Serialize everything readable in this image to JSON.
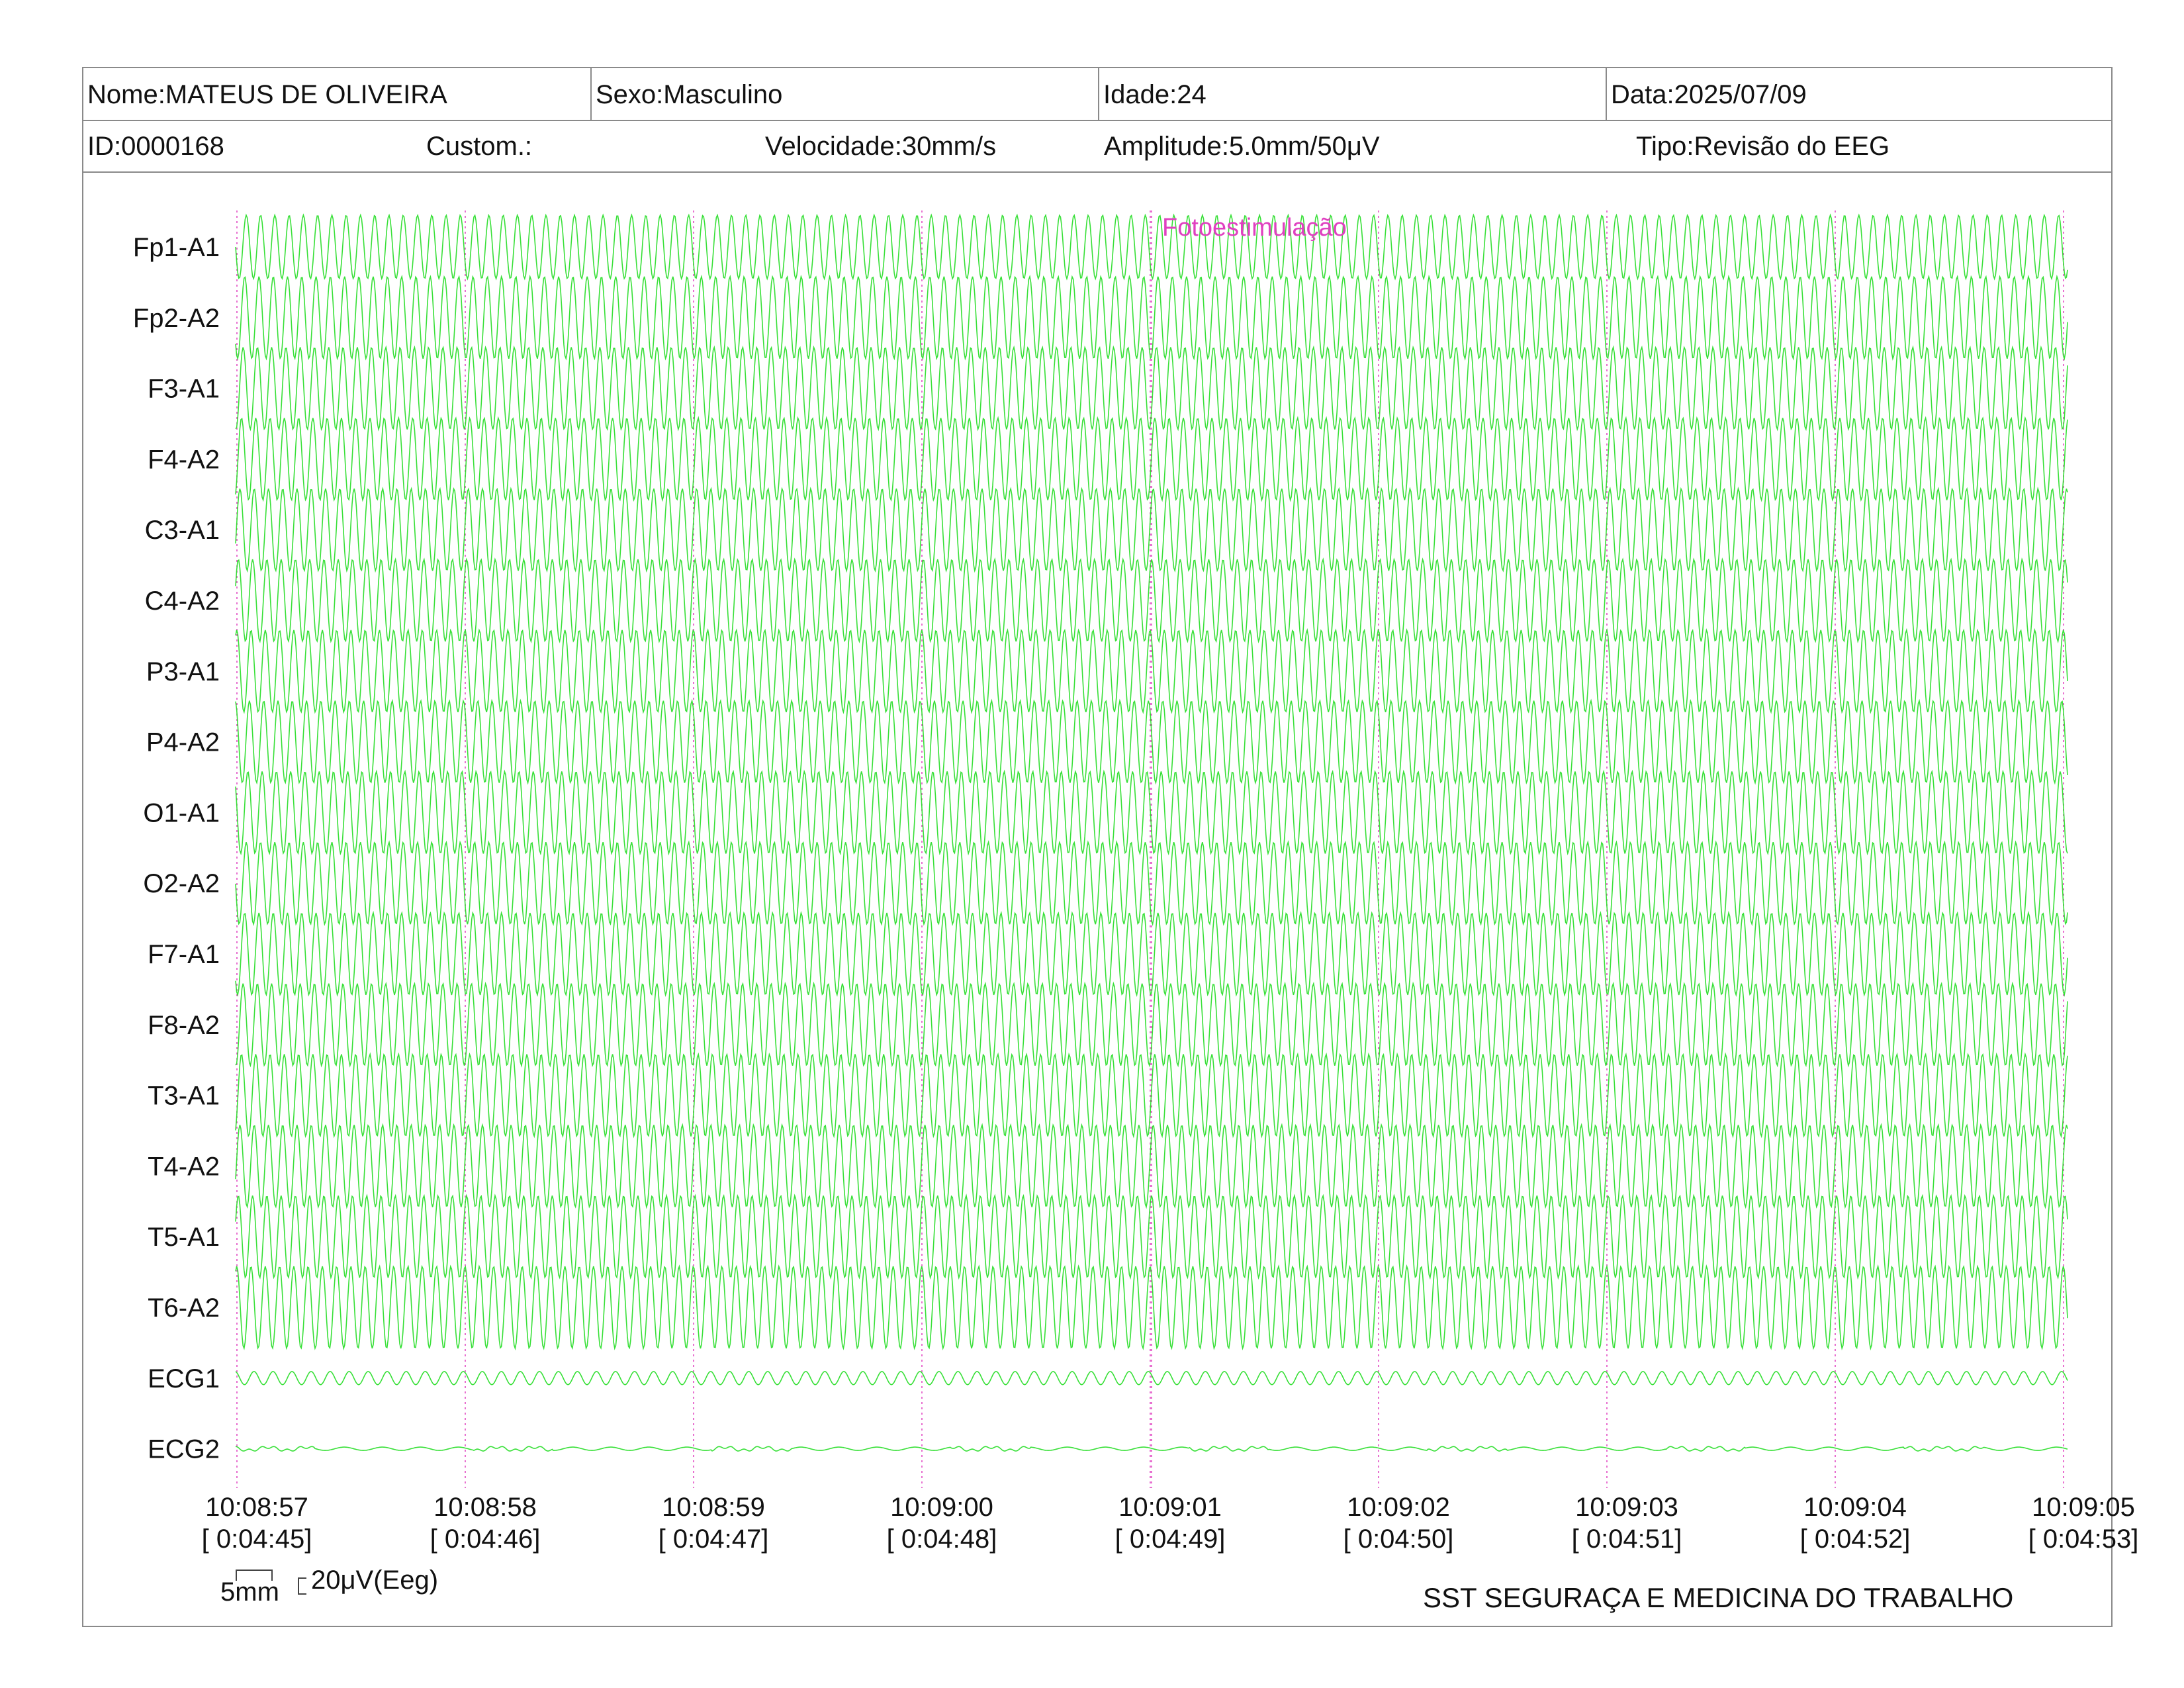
{
  "header": {
    "nome": "Nome:MATEUS DE OLIVEIRA",
    "sexo": "Sexo:Masculino",
    "idade": "Idade:24",
    "data": "Data:2025/07/09",
    "id": "ID:0000168",
    "custom": "Custom.:",
    "velocidade": "Velocidade:30mm/s",
    "amplitude": "Amplitude:5.0mm/50μV",
    "tipo": "Tipo:Revisão do EEG"
  },
  "annotation": "Fotoestimulação",
  "scale": {
    "mm_label": "5mm",
    "uv_label": "20μV(Eeg)"
  },
  "footer": {
    "company": "SST SEGURAÇA E MEDICINA DO TRABALHO"
  },
  "colors": {
    "trace": "#22dd22",
    "marker": "#e040c0",
    "border": "#8a8a8a"
  },
  "chart_data": {
    "type": "line",
    "channels": [
      "Fp1-A1",
      "Fp2-A2",
      "F3-A1",
      "F4-A2",
      "C3-A1",
      "C4-A2",
      "P3-A1",
      "P4-A2",
      "O1-A1",
      "O2-A2",
      "F7-A1",
      "F8-A2",
      "T3-A1",
      "T4-A2",
      "T5-A1",
      "T6-A2",
      "ECG1",
      "ECG2"
    ],
    "time_ticks": [
      {
        "clock": "10:08:57",
        "elapsed": "[ 0:04:45]"
      },
      {
        "clock": "10:08:58",
        "elapsed": "[ 0:04:46]"
      },
      {
        "clock": "10:08:59",
        "elapsed": "[ 0:04:47]"
      },
      {
        "clock": "10:09:00",
        "elapsed": "[ 0:04:48]"
      },
      {
        "clock": "10:09:01",
        "elapsed": "[ 0:04:49]"
      },
      {
        "clock": "10:09:02",
        "elapsed": "[ 0:04:50]"
      },
      {
        "clock": "10:09:03",
        "elapsed": "[ 0:04:51]"
      },
      {
        "clock": "10:09:04",
        "elapsed": "[ 0:04:52]"
      },
      {
        "clock": "10:09:05",
        "elapsed": "[ 0:04:53]"
      }
    ],
    "eeg_frequency_hz": 16,
    "ecg1_frequency_hz": 12,
    "ecg2_frequency_hz": 6,
    "annotation_time": "10:09:01",
    "grid": true
  }
}
